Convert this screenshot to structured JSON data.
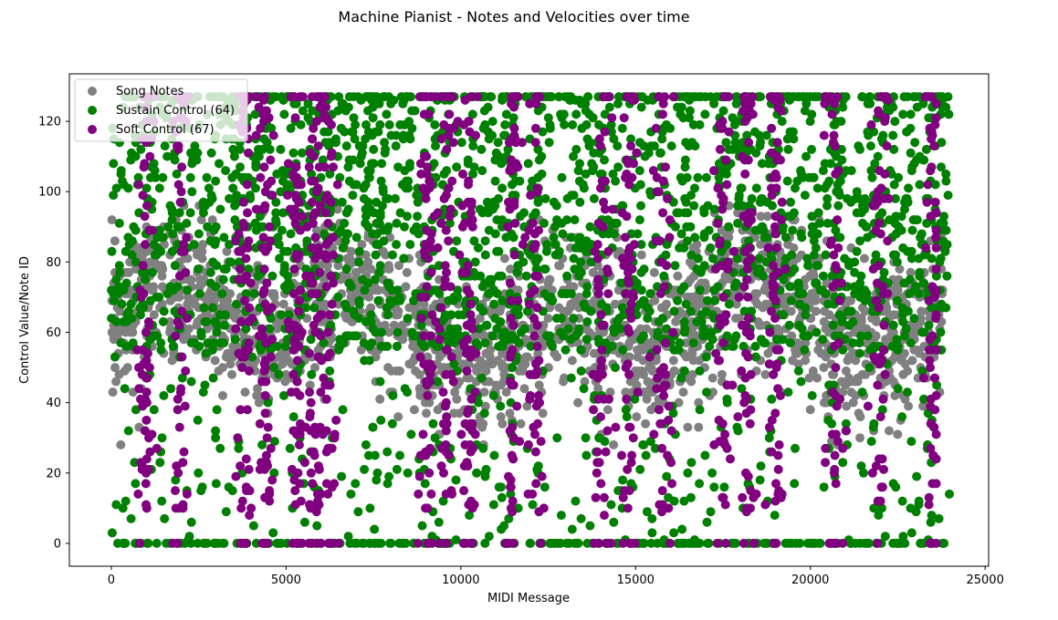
{
  "chart_data": {
    "type": "scatter",
    "title": "Machine Pianist - Notes and Velocities over time",
    "xlabel": "MIDI Message",
    "ylabel": "Control Value/Note ID",
    "xlim": [
      -1200,
      25100
    ],
    "ylim": [
      -6.5,
      133.5
    ],
    "xticks": [
      0,
      5000,
      10000,
      15000,
      20000,
      25000
    ],
    "yticks": [
      0,
      20,
      40,
      60,
      80,
      100,
      120
    ],
    "grid": false,
    "legend_position": "top-left",
    "series": [
      {
        "name": "Song Notes",
        "color": "#808080",
        "x_range": [
          0,
          23800
        ],
        "y_range": [
          28,
          96
        ],
        "typical_y_range": [
          40,
          85
        ],
        "approx_points": 5000
      },
      {
        "name": "Sustain Control (64)",
        "color": "#008000",
        "x_range": [
          0,
          24000
        ],
        "y_range": [
          0,
          127
        ],
        "notes": "Dense band between 55 and 127, many points at 0 and 127",
        "approx_points": 8000
      },
      {
        "name": "Soft Control (67)",
        "color": "#800080",
        "x_range": [
          100,
          23600
        ],
        "y_range": [
          0,
          127
        ],
        "notes": "Vertical streaks at roughly 1000, 2000, 3800, 4400, 5300, 5800, 6200, 9000, 9600, 10200, 11500, 14000, 14800, 17500, 18200, 19000, 20700, 22000, 23500",
        "approx_points": 3000
      }
    ]
  }
}
